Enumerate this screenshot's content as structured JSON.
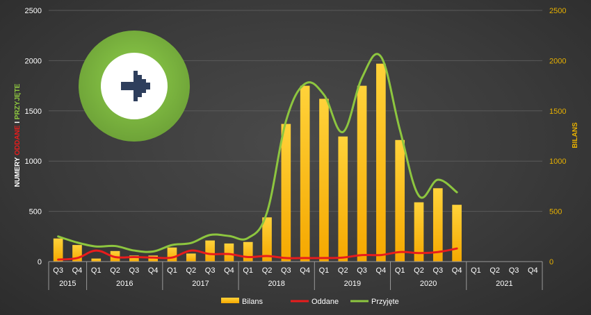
{
  "chart_data": {
    "type": "bar",
    "categories": [
      "Q3",
      "Q4",
      "Q1",
      "Q2",
      "Q3",
      "Q4",
      "Q1",
      "Q2",
      "Q3",
      "Q4",
      "Q1",
      "Q2",
      "Q3",
      "Q4",
      "Q1",
      "Q2",
      "Q3",
      "Q4",
      "Q1",
      "Q2",
      "Q3",
      "Q4",
      "Q1",
      "Q2",
      "Q3",
      "Q4"
    ],
    "years": [
      {
        "label": "2015",
        "span": 2
      },
      {
        "label": "2016",
        "span": 4
      },
      {
        "label": "2017",
        "span": 4
      },
      {
        "label": "2018",
        "span": 4
      },
      {
        "label": "2019",
        "span": 4
      },
      {
        "label": "2020",
        "span": 4
      },
      {
        "label": "2021",
        "span": 4
      }
    ],
    "series": [
      {
        "name": "Bilans",
        "type": "bar",
        "axis": "right",
        "values": [
          230,
          165,
          30,
          105,
          60,
          60,
          140,
          80,
          210,
          180,
          195,
          440,
          1370,
          1750,
          1620,
          1245,
          1750,
          1970,
          1210,
          590,
          730,
          565,
          null,
          null,
          null,
          null
        ]
      },
      {
        "name": "Oddane",
        "type": "line",
        "axis": "left",
        "values": [
          20,
          35,
          110,
          45,
          45,
          40,
          40,
          110,
          75,
          75,
          45,
          55,
          35,
          35,
          35,
          40,
          65,
          65,
          95,
          85,
          95,
          130,
          null,
          null,
          null,
          null
        ]
      },
      {
        "name": "Przyjęte",
        "type": "line",
        "axis": "left",
        "values": [
          250,
          190,
          150,
          155,
          110,
          100,
          165,
          185,
          265,
          255,
          235,
          490,
          1400,
          1770,
          1660,
          1290,
          1830,
          2040,
          1310,
          655,
          815,
          690,
          null,
          null,
          null,
          null
        ]
      }
    ],
    "y_left": {
      "min": 0,
      "max": 2500,
      "ticks": [
        0,
        500,
        1000,
        1500,
        2000,
        2500
      ]
    },
    "y_right": {
      "min": 0,
      "max": 2500,
      "ticks": [
        0,
        500,
        1000,
        1500,
        2000,
        2500
      ]
    },
    "y_left_label_parts": [
      {
        "text": "NUMERY ",
        "color": "#ffffff"
      },
      {
        "text": "ODDANE",
        "color": "#e81c1c"
      },
      {
        "text": " I ",
        "color": "#ffffff"
      },
      {
        "text": "PRZYJĘTE",
        "color": "#8dc63f"
      }
    ],
    "y_right_label": "BILANS",
    "colors": {
      "bar_top": "#ffd23a",
      "bar_bottom": "#f5a800",
      "oddane": "#e81c1c",
      "przyjete": "#8dc63f",
      "left_ticks": "#ffffff",
      "right_ticks": "#e8b100",
      "gridline": "#5a5a5a",
      "logo_ring": "#7cb342",
      "logo_inner": "#ffffff",
      "logo_arrow": "#2e3e5c"
    },
    "legend_position": "bottom",
    "grid": true
  },
  "logo": {
    "icon": "arrow-right-icon"
  }
}
